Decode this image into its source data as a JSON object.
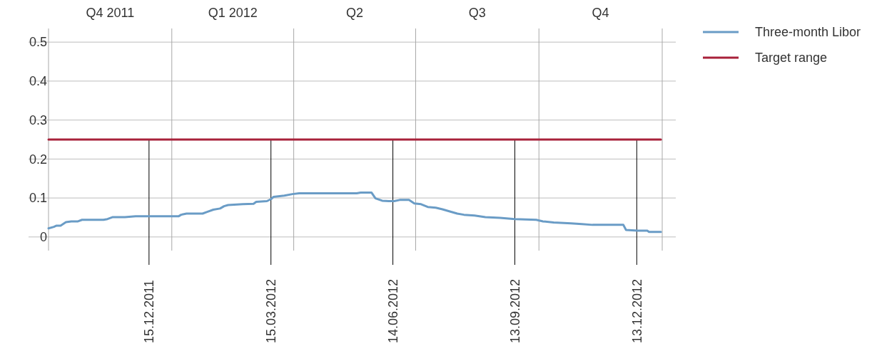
{
  "chart_data": {
    "type": "line",
    "xlim": [
      "2011-10-01",
      "2013-01-01"
    ],
    "xticks": [
      {
        "value": "2011-10-01",
        "label": null
      },
      {
        "value": "2011-12-15",
        "label": "15.12.2011"
      },
      {
        "value": "2012-01-01",
        "label": null
      },
      {
        "value": "2012-03-15",
        "label": "15.03.2012"
      },
      {
        "value": "2012-04-01",
        "label": null
      },
      {
        "value": "2012-06-14",
        "label": "14.06.2012"
      },
      {
        "value": "2012-07-01",
        "label": null
      },
      {
        "value": "2012-09-13",
        "label": "13.09.2012"
      },
      {
        "value": "2012-10-01",
        "label": null
      },
      {
        "value": "2012-12-13",
        "label": "13.12.2012"
      },
      {
        "value": "2013-01-01",
        "label": null
      }
    ],
    "annotations": [
      "Q4 2011",
      "Q1 2012",
      "Q2",
      "Q3",
      "Q4"
    ],
    "ylim": [
      -0.035,
      0.535
    ],
    "yticks": [
      0,
      0.1,
      0.2,
      0.3,
      0.4,
      0.5
    ],
    "grid": true,
    "legend": "top right",
    "series": [
      {
        "name": "Three-month Libor",
        "color": "#6a9cc6",
        "x": [
          "2011-10-01",
          "2011-10-05",
          "2011-10-07",
          "2011-10-10",
          "2011-10-14",
          "2011-10-18",
          "2011-10-23",
          "2011-10-26",
          "2011-11-11",
          "2011-11-14",
          "2011-11-18",
          "2011-11-27",
          "2011-12-05",
          "2012-01-01",
          "2012-01-06",
          "2012-01-08",
          "2012-01-12",
          "2012-01-24",
          "2012-01-27",
          "2012-02-01",
          "2012-02-06",
          "2012-02-09",
          "2012-02-12",
          "2012-02-23",
          "2012-03-02",
          "2012-03-04",
          "2012-03-12",
          "2012-03-15",
          "2012-03-17",
          "2012-03-25",
          "2012-03-31",
          "2012-04-05",
          "2012-05-18",
          "2012-05-21",
          "2012-05-29",
          "2012-06-01",
          "2012-06-06",
          "2012-06-11",
          "2012-06-15",
          "2012-06-19",
          "2012-06-26",
          "2012-06-30",
          "2012-07-05",
          "2012-07-10",
          "2012-07-16",
          "2012-07-21",
          "2012-07-26",
          "2012-08-01",
          "2012-08-06",
          "2012-08-14",
          "2012-08-22",
          "2012-09-02",
          "2012-09-13",
          "2012-09-29",
          "2012-10-04",
          "2012-10-12",
          "2012-10-25",
          "2012-11-02",
          "2012-11-10",
          "2012-12-03",
          "2012-12-05",
          "2012-12-14",
          "2012-12-21",
          "2012-12-22",
          "2012-12-31"
        ],
        "values": [
          0.022,
          0.026,
          0.029,
          0.029,
          0.038,
          0.04,
          0.04,
          0.044,
          0.044,
          0.046,
          0.051,
          0.051,
          0.053,
          0.053,
          0.053,
          0.057,
          0.06,
          0.06,
          0.064,
          0.07,
          0.073,
          0.079,
          0.082,
          0.084,
          0.085,
          0.09,
          0.092,
          0.097,
          0.103,
          0.106,
          0.11,
          0.112,
          0.112,
          0.114,
          0.114,
          0.099,
          0.093,
          0.092,
          0.092,
          0.095,
          0.095,
          0.086,
          0.084,
          0.077,
          0.075,
          0.071,
          0.066,
          0.06,
          0.057,
          0.055,
          0.051,
          0.049,
          0.046,
          0.044,
          0.04,
          0.037,
          0.035,
          0.033,
          0.031,
          0.031,
          0.018,
          0.016,
          0.016,
          0.013,
          0.013
        ]
      },
      {
        "name": "Target range",
        "color": "#a8213a",
        "x": [
          "2011-10-01",
          "2012-12-31"
        ],
        "values": [
          0.25,
          0.25
        ]
      }
    ],
    "ref_lines": [
      {
        "axis": "x",
        "value": "2011-12-15",
        "color": "#000000"
      },
      {
        "axis": "x",
        "value": "2012-03-15",
        "color": "#000000"
      },
      {
        "axis": "x",
        "value": "2012-06-14",
        "color": "#000000"
      },
      {
        "axis": "x",
        "value": "2012-09-13",
        "color": "#000000"
      },
      {
        "axis": "x",
        "value": "2012-12-13",
        "color": "#000000"
      }
    ]
  }
}
